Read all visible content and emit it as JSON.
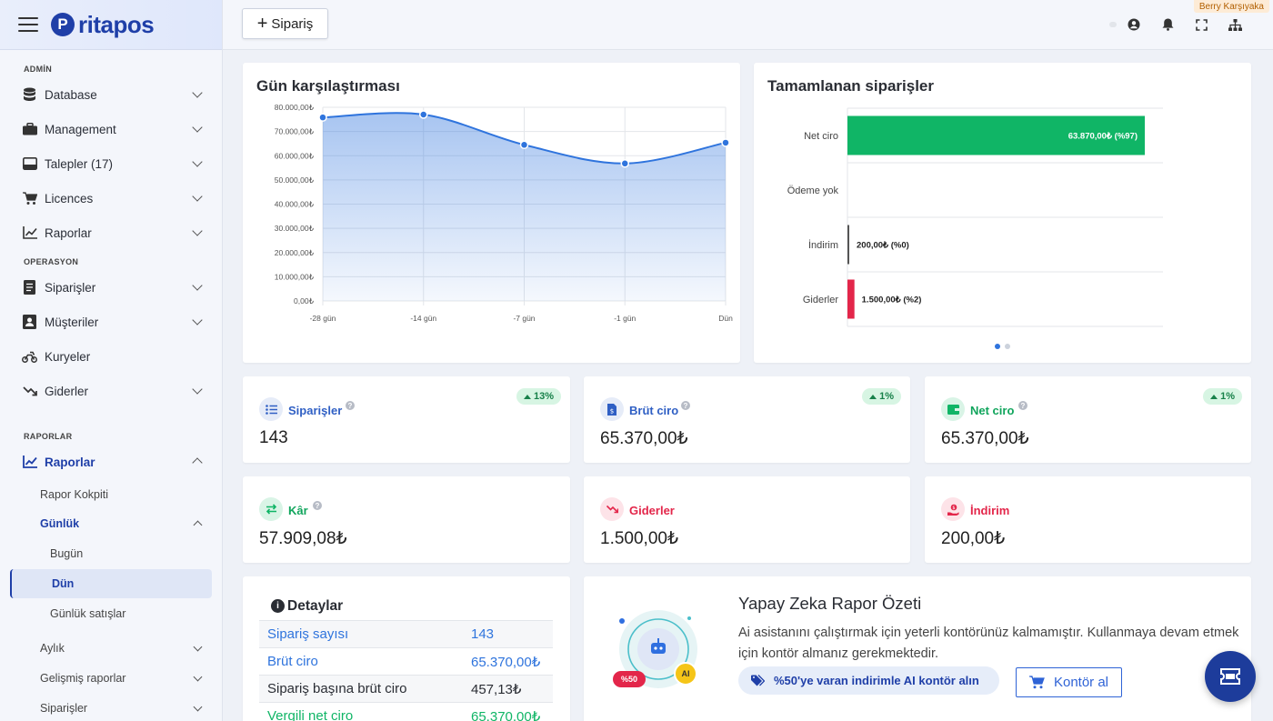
{
  "app": {
    "logo_text": "ritapos",
    "logo_mark": "P"
  },
  "sidebar": {
    "section_admin": "ADMİN",
    "section_operasyon": "OPERASYON",
    "section_raporlar": "RAPORLAR",
    "items": {
      "database": "Database",
      "management": "Management",
      "talepler": "Talepler (17)",
      "licences": "Licences",
      "raporlar_admin": "Raporlar",
      "siparisler": "Siparişler",
      "musteriler": "Müşteriler",
      "kuryeler": "Kuryeler",
      "giderler": "Giderler",
      "raporlar": "Raporlar"
    },
    "sub": {
      "rapor_kokpiti": "Rapor Kokpiti",
      "gunluk": "Günlük",
      "bugun": "Bugün",
      "dun": "Dün",
      "gunluk_satislar": "Günlük satışlar",
      "aylik": "Aylık",
      "gelismis": "Gelişmiş raporlar",
      "siparisler": "Siparişler"
    }
  },
  "topbar": {
    "new_order_label": "Sipariş",
    "user_name": "Berry Karşıyaka"
  },
  "day_compare": {
    "title": "Gün karşılaştırması"
  },
  "completed_orders": {
    "title": "Tamamlanan siparişler"
  },
  "chart_data": [
    {
      "type": "area",
      "title": "Gün karşılaştırması",
      "x": [
        "-28 gün",
        "-14 gün",
        "-7 gün",
        "-1 gün",
        "Dün"
      ],
      "values": [
        75800,
        77000,
        64500,
        56800,
        65370
      ],
      "y_ticks": [
        "80.000,00₺",
        "70.000,00₺",
        "60.000,00₺",
        "50.000,00₺",
        "40.000,00₺",
        "30.000,00₺",
        "20.000,00₺",
        "10.000,00₺",
        "0,00₺"
      ],
      "ylim": [
        0,
        80000
      ],
      "grid": true,
      "color": "#2f74dd"
    },
    {
      "type": "bar",
      "orientation": "horizontal",
      "title": "Tamamlanan siparişler",
      "categories": [
        "Net ciro",
        "Ödeme yok",
        "İndirim",
        "Giderler"
      ],
      "values": [
        63870,
        0,
        200,
        1500
      ],
      "labels": [
        "63.870,00₺ (%97)",
        "",
        "200,00₺ (%0)",
        "1.500,00₺ (%2)"
      ],
      "colors": [
        "#10b566",
        "#10b566",
        "#555555",
        "#e3264a"
      ],
      "xlim": [
        0,
        63870
      ],
      "pager_dots": 2
    }
  ],
  "stats": {
    "siparisler": {
      "label": "Siparişler",
      "value": "143",
      "change": "13%"
    },
    "brut_ciro": {
      "label": "Brüt ciro",
      "value": "65.370,00₺",
      "change": "1%"
    },
    "net_ciro": {
      "label": "Net ciro",
      "value": "65.370,00₺",
      "change": "1%"
    },
    "kar": {
      "label": "Kâr",
      "value": "57.909,08₺"
    },
    "giderler": {
      "label": "Giderler",
      "value": "1.500,00₺"
    },
    "indirim": {
      "label": "İndirim",
      "value": "200,00₺"
    }
  },
  "details": {
    "title": "Detaylar",
    "rows": [
      {
        "key": "Sipariş sayısı",
        "value": "143"
      },
      {
        "key": "Brüt ciro",
        "value": "65.370,00₺"
      },
      {
        "key": "Sipariş başına brüt ciro",
        "value": "457,13₺"
      },
      {
        "key": "Vergili net ciro",
        "value": "65.370,00₺"
      }
    ]
  },
  "ai": {
    "title": "Yapay Zeka Rapor Özeti",
    "text": "Ai asistanını çalıştırmak için yeterli kontörünüz kalmamıştır. Kullanmaya devam etmek için kontör almanız gerekmektedir.",
    "promo": "%50'ye varan indirimle AI kontör alın",
    "buy": "Kontör al",
    "badge_discount": "%50",
    "badge_ai": "AI"
  },
  "colors": {
    "primary": "#1f3fa8",
    "green": "#10b566",
    "red": "#e3264a",
    "blue": "#2f74dd"
  }
}
